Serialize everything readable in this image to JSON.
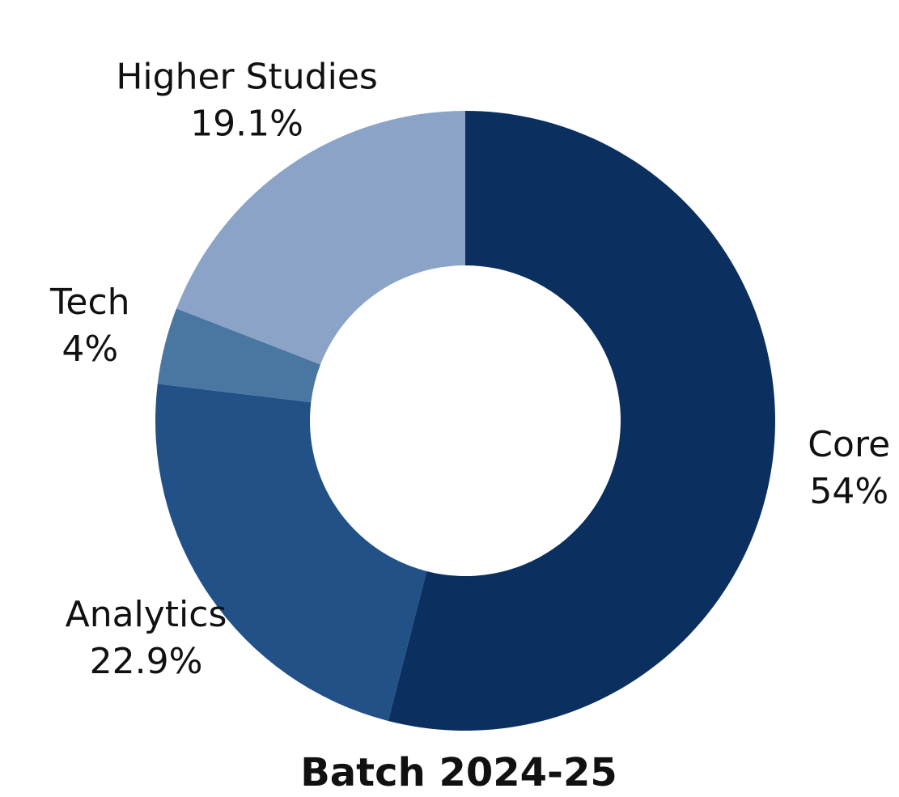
{
  "chart_data": {
    "type": "donut",
    "title": "Batch 2024-25",
    "categories": [
      "Core",
      "Analytics",
      "Tech",
      "Higher Studies"
    ],
    "values": [
      54,
      22.9,
      4,
      19.1
    ],
    "value_labels": [
      "54%",
      "22.9%",
      "4%",
      "19.1%"
    ],
    "colors": [
      "#0b2f5f",
      "#215187",
      "#4a77a2",
      "#8aa3c7"
    ]
  }
}
